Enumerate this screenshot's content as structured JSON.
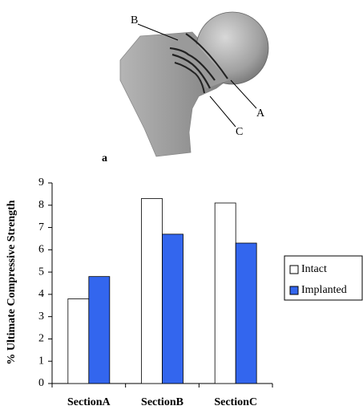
{
  "illustration": {
    "labels": [
      "B",
      "A",
      "C"
    ],
    "panel": "a"
  },
  "chart_data": {
    "type": "bar",
    "ylabel": "% Ultimate Compressive Strength",
    "categories": [
      "SectionA",
      "SectionB",
      "SectionC"
    ],
    "series": [
      {
        "name": "Intact",
        "color": "#ffffff",
        "values": [
          3.8,
          8.3,
          8.1
        ]
      },
      {
        "name": "Implanted",
        "color": "#3366ee",
        "values": [
          4.8,
          6.7,
          6.3
        ]
      }
    ],
    "ylim": [
      0,
      9
    ],
    "yticks": [
      0,
      1,
      2,
      3,
      4,
      5,
      6,
      7,
      8,
      9
    ],
    "grid": false,
    "legend": "right"
  }
}
